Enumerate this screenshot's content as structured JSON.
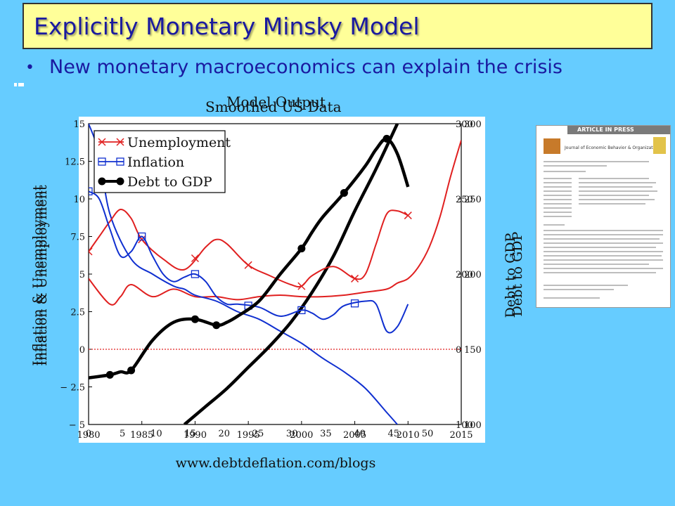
{
  "slide": {
    "title": "Explicitly Monetary Minsky Model",
    "bullet": "New monetary macroeconomics can explain the crisis",
    "background_color": "#66ccff",
    "title_box_color": "#ffff99",
    "text_color": "#1a1aa0"
  },
  "paper_thumbnail": {
    "banner": "ARTICLE IN PRESS",
    "journal": "Journal of Economic Behavior & Organization"
  },
  "chart_data": {
    "type": "line",
    "title": "Smoothed US Data",
    "title_overlay": "Model Output",
    "ylabel_left": "Inflation & Unemployment",
    "ylabel_right": "Debt to GDP",
    "footer": "www.debtdeflation.com/blogs",
    "grid": false,
    "legend_position": "top-left",
    "y_left_range": [
      -5,
      15
    ],
    "y_right_range": [
      100,
      300
    ],
    "y_left_ticks": [
      "15",
      "12.5",
      "10",
      "7.5",
      "5",
      "2.5",
      "0",
      "− 2.5",
      "− 5"
    ],
    "y_right_ticks": [
      "300",
      "250",
      "200",
      "150",
      "100"
    ],
    "y_right_inner_ticks": [
      "300",
      "250",
      "200",
      "0",
      "100"
    ],
    "x_year_ticks": [
      "1980",
      "1985",
      "1990",
      "1995",
      "2000",
      "2005",
      "2010",
      "2015"
    ],
    "x_model_ticks": [
      "0",
      "5",
      "10",
      "15",
      "20",
      "25",
      "30",
      "35",
      "40",
      "45",
      "50"
    ],
    "zero_line_value": 0,
    "series": [
      {
        "name": "Unemployment",
        "axis": "left",
        "color": "#e02020",
        "marker": "x",
        "x": [
          1980,
          1981,
          1982,
          1983,
          1984,
          1985,
          1987,
          1989,
          1991,
          1992,
          1993,
          1995,
          1997,
          1999,
          2000,
          2001,
          2003,
          2005,
          2006,
          2007,
          2008,
          2009,
          2010
        ],
        "y": [
          6.5,
          7.5,
          8.5,
          9.3,
          8.7,
          7.3,
          6.0,
          5.3,
          6.8,
          7.3,
          7.0,
          5.6,
          4.9,
          4.3,
          4.2,
          4.9,
          5.5,
          4.7,
          5.0,
          7.0,
          9.0,
          9.2,
          8.9
        ],
        "markers_x": [
          1980,
          1985,
          1990,
          1995,
          2000,
          2005,
          2010
        ]
      },
      {
        "name": "Inflation",
        "axis": "left",
        "color": "#1030d0",
        "marker": "square",
        "x": [
          1980,
          1981,
          1982,
          1983,
          1984,
          1985,
          1986,
          1987,
          1988,
          1989,
          1990,
          1991,
          1992,
          1993,
          1994,
          1996,
          1998,
          2000,
          2001,
          2002,
          2003,
          2004,
          2006,
          2007,
          2008,
          2009,
          2010
        ],
        "y": [
          10.5,
          10.0,
          8.0,
          6.2,
          6.5,
          7.5,
          6.2,
          5.0,
          4.5,
          4.8,
          5.0,
          4.5,
          3.5,
          3.0,
          3.0,
          2.8,
          2.2,
          2.6,
          2.4,
          2.0,
          2.3,
          2.9,
          3.2,
          3.0,
          1.2,
          1.5,
          3.0
        ],
        "markers_x": [
          1980,
          1985,
          1990,
          1995,
          2000,
          2005
        ]
      },
      {
        "name": "Debt to GDP",
        "axis": "right",
        "color": "#000000",
        "marker": "circle",
        "x": [
          1980,
          1982,
          1983,
          1984,
          1986,
          1988,
          1990,
          1992,
          1993,
          1994,
          1996,
          1998,
          2000,
          2001,
          2002,
          2004,
          2006,
          2007,
          2008,
          2009,
          2010
        ],
        "y": [
          131,
          133,
          135,
          136,
          156,
          168,
          170,
          166,
          168,
          172,
          182,
          200,
          217,
          228,
          238,
          254,
          272,
          283,
          290,
          280,
          258
        ],
        "markers_x": [
          1982,
          1984,
          1990,
          1992,
          2000,
          2004,
          2008
        ]
      }
    ],
    "model_series": [
      {
        "name": "Model Unemployment",
        "axis": "left",
        "color": "#e02020",
        "marker": "x",
        "x": [
          1980,
          1982,
          1983,
          1984,
          1986,
          1988,
          1990,
          1992,
          1994,
          1996,
          1998,
          2000,
          2002,
          2004,
          2006,
          2008,
          2009,
          2010,
          2011,
          2012,
          2013,
          2014,
          2015
        ],
        "y": [
          4.7,
          3.0,
          3.5,
          4.3,
          3.5,
          4.0,
          3.5,
          3.5,
          3.3,
          3.5,
          3.6,
          3.5,
          3.5,
          3.6,
          3.8,
          4.0,
          4.4,
          4.7,
          5.5,
          6.8,
          8.8,
          11.5,
          13.9
        ]
      },
      {
        "name": "Model Inflation",
        "axis": "left",
        "color": "#1030d0",
        "marker": "square",
        "x": [
          1980,
          1981,
          1982,
          1984,
          1986,
          1988,
          1989,
          1990,
          1992,
          1994,
          1996,
          1998,
          2000,
          2002,
          2004,
          2006,
          2008,
          2009
        ],
        "y": [
          15,
          13,
          9,
          6,
          5,
          4.2,
          4.0,
          3.6,
          3.2,
          2.5,
          2.0,
          1.2,
          0.4,
          -0.6,
          -1.5,
          -2.6,
          -4.2,
          -5
        ]
      },
      {
        "name": "Model Debt to GDP",
        "axis": "right",
        "color": "#000000",
        "marker": "circle",
        "x": [
          1989,
          1991,
          1993,
          1995,
          1997,
          1999,
          2001,
          2003,
          2005,
          2007,
          2009
        ],
        "y": [
          100,
          112,
          124,
          138,
          152,
          168,
          188,
          212,
          242,
          270,
          300
        ]
      }
    ]
  }
}
